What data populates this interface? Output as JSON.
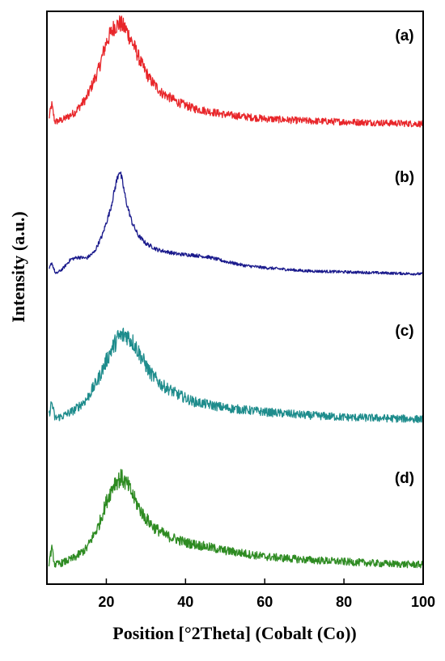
{
  "chart_data": {
    "type": "line",
    "xlabel": "Position [°2Theta] (Cobalt (Co))",
    "ylabel": "Intensity (a.u.)",
    "xlim": [
      5,
      100
    ],
    "x_ticks": [
      20,
      40,
      60,
      80,
      100
    ],
    "y_ticks_shown": false,
    "grid": false,
    "legend": "none",
    "series": [
      {
        "name": "(a)",
        "color": "#e8262a",
        "noise": 0.06,
        "points": [
          [
            5.5,
            0.08
          ],
          [
            6.2,
            0.22
          ],
          [
            7,
            0.05
          ],
          [
            9,
            0.07
          ],
          [
            12,
            0.14
          ],
          [
            15,
            0.28
          ],
          [
            18,
            0.55
          ],
          [
            20,
            0.82
          ],
          [
            22,
            0.97
          ],
          [
            23.5,
            1.0
          ],
          [
            25,
            0.94
          ],
          [
            27,
            0.78
          ],
          [
            29,
            0.6
          ],
          [
            31,
            0.46
          ],
          [
            34,
            0.33
          ],
          [
            38,
            0.24
          ],
          [
            42,
            0.18
          ],
          [
            50,
            0.12
          ],
          [
            60,
            0.08
          ],
          [
            70,
            0.06
          ],
          [
            80,
            0.05
          ],
          [
            90,
            0.04
          ],
          [
            100,
            0.03
          ]
        ]
      },
      {
        "name": "(b)",
        "color": "#1a1a8c",
        "noise": 0.025,
        "points": [
          [
            5.5,
            0.05
          ],
          [
            6.2,
            0.12
          ],
          [
            7.2,
            0.01
          ],
          [
            9,
            0.06
          ],
          [
            11,
            0.15
          ],
          [
            13,
            0.17
          ],
          [
            15,
            0.16
          ],
          [
            17,
            0.22
          ],
          [
            19,
            0.38
          ],
          [
            21,
            0.62
          ],
          [
            22.5,
            0.88
          ],
          [
            23.3,
            1.0
          ],
          [
            24,
            0.9
          ],
          [
            25,
            0.7
          ],
          [
            26.5,
            0.5
          ],
          [
            28,
            0.38
          ],
          [
            30,
            0.3
          ],
          [
            33,
            0.24
          ],
          [
            38,
            0.2
          ],
          [
            42,
            0.19
          ],
          [
            46,
            0.17
          ],
          [
            50,
            0.13
          ],
          [
            55,
            0.09
          ],
          [
            60,
            0.07
          ],
          [
            70,
            0.04
          ],
          [
            80,
            0.03
          ],
          [
            90,
            0.02
          ],
          [
            100,
            0.01
          ]
        ]
      },
      {
        "name": "(c)",
        "color": "#1e8c8c",
        "noise": 0.07,
        "points": [
          [
            5.5,
            0.06
          ],
          [
            6.2,
            0.2
          ],
          [
            7,
            0.04
          ],
          [
            9,
            0.06
          ],
          [
            12,
            0.12
          ],
          [
            15,
            0.22
          ],
          [
            18,
            0.42
          ],
          [
            21,
            0.68
          ],
          [
            23,
            0.82
          ],
          [
            25,
            0.85
          ],
          [
            27,
            0.76
          ],
          [
            29,
            0.62
          ],
          [
            31,
            0.48
          ],
          [
            34,
            0.36
          ],
          [
            38,
            0.27
          ],
          [
            42,
            0.2
          ],
          [
            50,
            0.14
          ],
          [
            60,
            0.1
          ],
          [
            70,
            0.07
          ],
          [
            80,
            0.05
          ],
          [
            90,
            0.04
          ],
          [
            100,
            0.03
          ]
        ]
      },
      {
        "name": "(d)",
        "color": "#2e8b22",
        "noise": 0.065,
        "points": [
          [
            5.5,
            0.06
          ],
          [
            6.2,
            0.2
          ],
          [
            7,
            0.04
          ],
          [
            9,
            0.06
          ],
          [
            12,
            0.11
          ],
          [
            15,
            0.2
          ],
          [
            18,
            0.42
          ],
          [
            20,
            0.66
          ],
          [
            22,
            0.85
          ],
          [
            23.8,
            0.9
          ],
          [
            25.5,
            0.82
          ],
          [
            27.5,
            0.66
          ],
          [
            29.5,
            0.52
          ],
          [
            32,
            0.41
          ],
          [
            35,
            0.33
          ],
          [
            40,
            0.26
          ],
          [
            45,
            0.22
          ],
          [
            50,
            0.18
          ],
          [
            60,
            0.12
          ],
          [
            70,
            0.09
          ],
          [
            80,
            0.07
          ],
          [
            90,
            0.05
          ],
          [
            100,
            0.04
          ]
        ]
      }
    ]
  }
}
